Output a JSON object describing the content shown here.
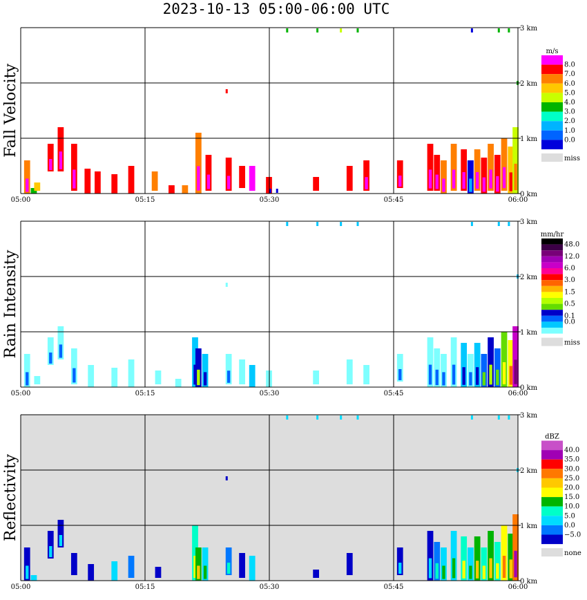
{
  "title": "2023-10-13  05:00-06:00 UTC",
  "x_ticks": [
    "05:00",
    "05:15",
    "05:30",
    "05:45",
    "06:00"
  ],
  "height_ticks": [
    "3 km",
    "2 km",
    "1 km",
    "0 km"
  ],
  "chart_data": [
    {
      "type": "heatmap",
      "ylabel": "Fall Velocity",
      "x_range": [
        "05:00",
        "06:00"
      ],
      "ylim_km": [
        0,
        3
      ],
      "grid": true,
      "background": "#ffffff",
      "legend": {
        "placement": "right",
        "unit": "m/s",
        "labels": [
          "8.0",
          "7.0",
          "6.0",
          "5.0",
          "4.0",
          "3.0",
          "2.0",
          "1.0",
          "0.0"
        ],
        "colors": [
          "#ff00ff",
          "#ff0000",
          "#ff7f00",
          "#ffc800",
          "#c8ff00",
          "#00b400",
          "#00ffc8",
          "#00b4ff",
          "#0064ff",
          "#0000dc"
        ],
        "missing_label": "miss",
        "missing_color": "#dddddd"
      },
      "echoes": [
        {
          "t": 0.5,
          "h0": 0.0,
          "h1": 0.6,
          "v": 2
        },
        {
          "t": 1.5,
          "h0": 0.0,
          "h1": 0.1,
          "v": 5
        },
        {
          "t": 2.0,
          "h0": 0.05,
          "h1": 0.2,
          "v": 3
        },
        {
          "t": 4.0,
          "h0": 0.4,
          "h1": 0.9,
          "v": 1
        },
        {
          "t": 5.5,
          "h0": 0.4,
          "h1": 1.2,
          "v": 1
        },
        {
          "t": 7.5,
          "h0": 0.05,
          "h1": 0.9,
          "v": 1
        },
        {
          "t": 9.5,
          "h0": 0.0,
          "h1": 0.45,
          "v": 1
        },
        {
          "t": 11.0,
          "h0": 0.0,
          "h1": 0.4,
          "v": 1
        },
        {
          "t": 13.5,
          "h0": 0.0,
          "h1": 0.35,
          "v": 1
        },
        {
          "t": 16.0,
          "h0": 0.0,
          "h1": 0.5,
          "v": 1
        },
        {
          "t": 19.5,
          "h0": 0.05,
          "h1": 0.4,
          "v": 2
        },
        {
          "t": 22.0,
          "h0": 0.0,
          "h1": 0.15,
          "v": 1
        },
        {
          "t": 24.0,
          "h0": 0.0,
          "h1": 0.15,
          "v": 2
        },
        {
          "t": 26.0,
          "h0": 0.0,
          "h1": 1.1,
          "v": 2
        },
        {
          "t": 27.5,
          "h0": 0.05,
          "h1": 0.7,
          "v": 1
        },
        {
          "t": 30.5,
          "h0": 0.05,
          "h1": 0.65,
          "v": 1
        },
        {
          "t": 32.5,
          "h0": 0.1,
          "h1": 0.5,
          "v": 1
        },
        {
          "t": 34.0,
          "h0": 0.05,
          "h1": 0.5,
          "v": 0
        },
        {
          "t": 36.5,
          "h0": 0.0,
          "h1": 0.3,
          "v": 1
        },
        {
          "t": 43.5,
          "h0": 0.05,
          "h1": 0.3,
          "v": 1
        },
        {
          "t": 48.5,
          "h0": 0.05,
          "h1": 0.5,
          "v": 1
        },
        {
          "t": 51.0,
          "h0": 0.05,
          "h1": 0.6,
          "v": 1
        },
        {
          "t": 56.0,
          "h0": 0.1,
          "h1": 0.6,
          "v": 1
        },
        {
          "t": 60.5,
          "h0": 0.05,
          "h1": 0.9,
          "v": 1
        },
        {
          "t": 61.5,
          "h0": 0.05,
          "h1": 0.7,
          "v": 1
        },
        {
          "t": 62.5,
          "h0": 0.0,
          "h1": 0.6,
          "v": 2
        },
        {
          "t": 64.0,
          "h0": 0.05,
          "h1": 0.9,
          "v": 2
        },
        {
          "t": 65.5,
          "h0": 0.05,
          "h1": 0.8,
          "v": 1
        },
        {
          "t": 66.5,
          "h0": 0.0,
          "h1": 0.6,
          "v": 9
        },
        {
          "t": 67.5,
          "h0": 0.05,
          "h1": 0.8,
          "v": 2
        },
        {
          "t": 68.5,
          "h0": 0.0,
          "h1": 0.65,
          "v": 1
        },
        {
          "t": 69.5,
          "h0": 0.05,
          "h1": 0.9,
          "v": 2
        },
        {
          "t": 70.5,
          "h0": 0.0,
          "h1": 0.7,
          "v": 1
        },
        {
          "t": 71.5,
          "h0": 0.05,
          "h1": 1.0,
          "v": 2
        },
        {
          "t": 72.5,
          "h0": 0.0,
          "h1": 0.85,
          "v": 3
        },
        {
          "t": 73.2,
          "h0": 0.0,
          "h1": 1.2,
          "v": 4
        }
      ],
      "specks": [
        {
          "t": 39.5,
          "h": 2.95,
          "v": 5
        },
        {
          "t": 44.0,
          "h": 2.95,
          "v": 5
        },
        {
          "t": 47.5,
          "h": 2.95,
          "v": 4
        },
        {
          "t": 50.0,
          "h": 2.95,
          "v": 5
        },
        {
          "t": 30.5,
          "h": 1.85,
          "v": 1
        },
        {
          "t": 37.0,
          "h": 0.05,
          "v": 9
        },
        {
          "t": 38.0,
          "h": 0.05,
          "v": 9
        },
        {
          "t": 67.0,
          "h": 2.95,
          "v": 9
        },
        {
          "t": 71.0,
          "h": 2.95,
          "v": 5
        },
        {
          "t": 72.5,
          "h": 2.95,
          "v": 5
        },
        {
          "t": 73.8,
          "h": 2.0,
          "v": 5
        }
      ]
    },
    {
      "type": "heatmap",
      "ylabel": "Rain Intensity",
      "x_range": [
        "05:00",
        "06:00"
      ],
      "ylim_km": [
        0,
        3
      ],
      "grid": true,
      "background": "#ffffff",
      "legend": {
        "placement": "right",
        "unit": "mm/hr",
        "labels": [
          "48.0",
          "",
          "12.0",
          "",
          "6.0",
          "",
          "3.0",
          "",
          "1.5",
          "",
          "0.5",
          "",
          "0.1",
          "0.0"
        ],
        "colors": [
          "#000000",
          "#3c0046",
          "#780078",
          "#a000b4",
          "#c800c8",
          "#ff0096",
          "#ff0000",
          "#ff6400",
          "#ffb400",
          "#ffff00",
          "#b4ff00",
          "#64dc00",
          "#0000c8",
          "#0064ff",
          "#00c8ff",
          "#7dffff"
        ],
        "missing_label": "miss",
        "missing_color": "#dddddd"
      },
      "echoes": [
        {
          "t": 0.5,
          "h0": 0.0,
          "h1": 0.6,
          "v": 15
        },
        {
          "t": 2.0,
          "h0": 0.05,
          "h1": 0.2,
          "v": 15
        },
        {
          "t": 4.0,
          "h0": 0.4,
          "h1": 0.9,
          "v": 15
        },
        {
          "t": 5.5,
          "h0": 0.5,
          "h1": 1.1,
          "v": 15
        },
        {
          "t": 7.5,
          "h0": 0.05,
          "h1": 0.7,
          "v": 15
        },
        {
          "t": 10.0,
          "h0": 0.0,
          "h1": 0.4,
          "v": 15
        },
        {
          "t": 13.5,
          "h0": 0.0,
          "h1": 0.35,
          "v": 15
        },
        {
          "t": 16.0,
          "h0": 0.0,
          "h1": 0.5,
          "v": 15
        },
        {
          "t": 20.0,
          "h0": 0.05,
          "h1": 0.3,
          "v": 15
        },
        {
          "t": 23.0,
          "h0": 0.0,
          "h1": 0.15,
          "v": 15
        },
        {
          "t": 25.5,
          "h0": 0.0,
          "h1": 0.9,
          "v": 14
        },
        {
          "t": 26.0,
          "h0": 0.0,
          "h1": 0.7,
          "v": 12
        },
        {
          "t": 27.0,
          "h0": 0.0,
          "h1": 0.6,
          "v": 14
        },
        {
          "t": 30.5,
          "h0": 0.05,
          "h1": 0.6,
          "v": 15
        },
        {
          "t": 32.5,
          "h0": 0.05,
          "h1": 0.5,
          "v": 15
        },
        {
          "t": 34.0,
          "h0": 0.0,
          "h1": 0.4,
          "v": 14
        },
        {
          "t": 36.5,
          "h0": 0.0,
          "h1": 0.3,
          "v": 15
        },
        {
          "t": 43.5,
          "h0": 0.05,
          "h1": 0.3,
          "v": 15
        },
        {
          "t": 48.5,
          "h0": 0.05,
          "h1": 0.5,
          "v": 15
        },
        {
          "t": 51.0,
          "h0": 0.05,
          "h1": 0.4,
          "v": 15
        },
        {
          "t": 56.0,
          "h0": 0.1,
          "h1": 0.6,
          "v": 15
        },
        {
          "t": 60.5,
          "h0": 0.0,
          "h1": 0.9,
          "v": 15
        },
        {
          "t": 61.5,
          "h0": 0.0,
          "h1": 0.7,
          "v": 15
        },
        {
          "t": 62.5,
          "h0": 0.0,
          "h1": 0.6,
          "v": 15
        },
        {
          "t": 64.0,
          "h0": 0.0,
          "h1": 0.9,
          "v": 15
        },
        {
          "t": 65.5,
          "h0": 0.0,
          "h1": 0.8,
          "v": 14
        },
        {
          "t": 66.5,
          "h0": 0.0,
          "h1": 0.6,
          "v": 15
        },
        {
          "t": 67.5,
          "h0": 0.0,
          "h1": 0.8,
          "v": 14
        },
        {
          "t": 68.5,
          "h0": 0.0,
          "h1": 0.6,
          "v": 13
        },
        {
          "t": 69.5,
          "h0": 0.0,
          "h1": 0.9,
          "v": 12
        },
        {
          "t": 70.5,
          "h0": 0.0,
          "h1": 0.7,
          "v": 13
        },
        {
          "t": 71.5,
          "h0": 0.0,
          "h1": 1.0,
          "v": 11
        },
        {
          "t": 72.5,
          "h0": 0.0,
          "h1": 0.85,
          "v": 9
        },
        {
          "t": 73.2,
          "h0": 0.0,
          "h1": 1.1,
          "v": 4
        }
      ],
      "specks": [
        {
          "t": 39.5,
          "h": 2.95,
          "v": 14
        },
        {
          "t": 44.0,
          "h": 2.95,
          "v": 14
        },
        {
          "t": 47.5,
          "h": 2.95,
          "v": 14
        },
        {
          "t": 50.0,
          "h": 2.95,
          "v": 14
        },
        {
          "t": 30.5,
          "h": 1.85,
          "v": 15
        },
        {
          "t": 67.0,
          "h": 2.95,
          "v": 14
        },
        {
          "t": 71.0,
          "h": 2.95,
          "v": 14
        },
        {
          "t": 72.5,
          "h": 2.95,
          "v": 14
        },
        {
          "t": 73.8,
          "h": 2.0,
          "v": 14
        }
      ]
    },
    {
      "type": "heatmap",
      "ylabel": "Reflectivity",
      "x_range": [
        "05:00",
        "06:00"
      ],
      "ylim_km": [
        0,
        3
      ],
      "grid": true,
      "background": "#dddddd",
      "legend": {
        "placement": "right",
        "unit": "dBZ",
        "labels": [
          "40.0",
          "35.0",
          "30.0",
          "25.0",
          "20.0",
          "15.0",
          "10.0",
          "5.0",
          "0.0",
          "−5.0"
        ],
        "colors": [
          "#c850c8",
          "#a000b4",
          "#ff0000",
          "#ff7800",
          "#ffc800",
          "#ffff00",
          "#00b400",
          "#00ffc8",
          "#00dcff",
          "#0078ff",
          "#0000c8"
        ],
        "missing_label": "none",
        "missing_color": "#dddddd"
      },
      "echoes": [
        {
          "t": 0.5,
          "h0": 0.0,
          "h1": 0.6,
          "v": 10
        },
        {
          "t": 1.5,
          "h0": 0.0,
          "h1": 0.1,
          "v": 8
        },
        {
          "t": 4.0,
          "h0": 0.4,
          "h1": 0.9,
          "v": 10
        },
        {
          "t": 5.5,
          "h0": 0.6,
          "h1": 1.1,
          "v": 10
        },
        {
          "t": 7.5,
          "h0": 0.1,
          "h1": 0.5,
          "v": 10
        },
        {
          "t": 10.0,
          "h0": 0.0,
          "h1": 0.3,
          "v": 10
        },
        {
          "t": 13.5,
          "h0": 0.0,
          "h1": 0.35,
          "v": 8
        },
        {
          "t": 16.0,
          "h0": 0.05,
          "h1": 0.45,
          "v": 9
        },
        {
          "t": 20.0,
          "h0": 0.05,
          "h1": 0.25,
          "v": 10
        },
        {
          "t": 25.5,
          "h0": 0.0,
          "h1": 1.0,
          "v": 7
        },
        {
          "t": 26.0,
          "h0": 0.0,
          "h1": 0.6,
          "v": 6
        },
        {
          "t": 27.0,
          "h0": 0.0,
          "h1": 0.6,
          "v": 8
        },
        {
          "t": 30.5,
          "h0": 0.1,
          "h1": 0.6,
          "v": 9
        },
        {
          "t": 32.5,
          "h0": 0.05,
          "h1": 0.5,
          "v": 10
        },
        {
          "t": 34.0,
          "h0": 0.0,
          "h1": 0.45,
          "v": 8
        },
        {
          "t": 43.5,
          "h0": 0.05,
          "h1": 0.2,
          "v": 10
        },
        {
          "t": 48.5,
          "h0": 0.1,
          "h1": 0.5,
          "v": 10
        },
        {
          "t": 56.0,
          "h0": 0.1,
          "h1": 0.6,
          "v": 10
        },
        {
          "t": 60.5,
          "h0": 0.0,
          "h1": 0.9,
          "v": 10
        },
        {
          "t": 61.5,
          "h0": 0.0,
          "h1": 0.7,
          "v": 9
        },
        {
          "t": 62.5,
          "h0": 0.0,
          "h1": 0.6,
          "v": 8
        },
        {
          "t": 64.0,
          "h0": 0.0,
          "h1": 0.9,
          "v": 8
        },
        {
          "t": 65.5,
          "h0": 0.0,
          "h1": 0.8,
          "v": 7
        },
        {
          "t": 66.5,
          "h0": 0.0,
          "h1": 0.6,
          "v": 8
        },
        {
          "t": 67.5,
          "h0": 0.0,
          "h1": 0.8,
          "v": 6
        },
        {
          "t": 68.5,
          "h0": 0.0,
          "h1": 0.6,
          "v": 7
        },
        {
          "t": 69.5,
          "h0": 0.0,
          "h1": 0.9,
          "v": 6
        },
        {
          "t": 70.5,
          "h0": 0.0,
          "h1": 0.7,
          "v": 7
        },
        {
          "t": 71.5,
          "h0": 0.0,
          "h1": 1.0,
          "v": 5
        },
        {
          "t": 72.5,
          "h0": 0.0,
          "h1": 0.85,
          "v": 6
        },
        {
          "t": 73.2,
          "h0": 0.0,
          "h1": 1.2,
          "v": 3
        }
      ],
      "specks": [
        {
          "t": 39.5,
          "h": 2.95,
          "v": 8
        },
        {
          "t": 44.0,
          "h": 2.95,
          "v": 8
        },
        {
          "t": 47.5,
          "h": 2.95,
          "v": 8
        },
        {
          "t": 50.0,
          "h": 2.95,
          "v": 8
        },
        {
          "t": 30.5,
          "h": 1.85,
          "v": 10
        },
        {
          "t": 67.0,
          "h": 2.95,
          "v": 8
        },
        {
          "t": 71.0,
          "h": 2.95,
          "v": 8
        },
        {
          "t": 72.5,
          "h": 2.95,
          "v": 8
        },
        {
          "t": 73.8,
          "h": 2.0,
          "v": 8
        }
      ]
    }
  ]
}
